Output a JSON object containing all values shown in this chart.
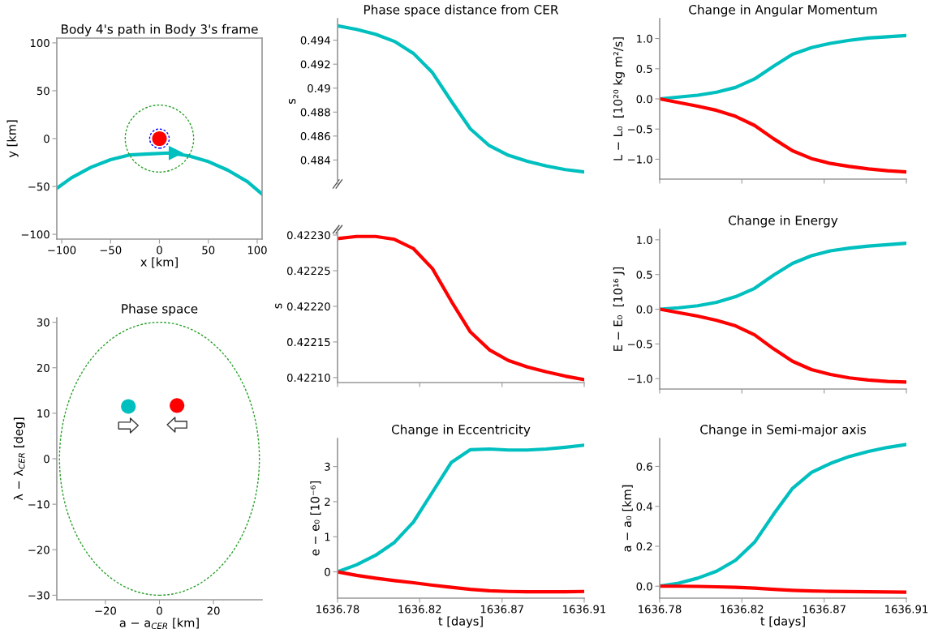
{
  "chart_data": [
    {
      "type": "line",
      "title": "Body 4's path in Body 3's frame",
      "xlabel": "x [km]",
      "ylabel": "y [km]",
      "xlim": [
        -105,
        105
      ],
      "ylim": [
        -105,
        105
      ],
      "xticks": [
        {
          "value": -100,
          "label": "−100"
        },
        {
          "value": -50,
          "label": "−50"
        },
        0,
        50,
        100
      ],
      "yticks": [
        {
          "value": -100,
          "label": "−100"
        },
        {
          "value": -50,
          "label": "−50"
        },
        0,
        50,
        100
      ],
      "series": [
        {
          "type": "line",
          "color": "#00bfbf",
          "x": [
            -105,
            -90,
            -70,
            -50,
            -30,
            -10,
            10,
            30,
            50,
            70,
            90,
            105
          ],
          "values": [
            -52,
            -41,
            -30,
            -22,
            -17,
            -16,
            -15,
            -18,
            -24,
            -33,
            -45,
            -58
          ]
        },
        {
          "type": "scatter",
          "color": "#ff0000",
          "x": [
            0
          ],
          "values": [
            0
          ],
          "marker": "circle"
        },
        {
          "type": "scatter",
          "color": "#00bfbf",
          "x": [
            17
          ],
          "values": [
            -15
          ],
          "marker": "triangle_right"
        }
      ]
    },
    {
      "type": "line",
      "title": "Phase space distance from CER",
      "ylabel": "s",
      "tick_labels": "y",
      "xlim": [
        1636.78,
        1636.91
      ],
      "ylim": [
        0.482,
        0.4958
      ],
      "yticks": [
        0.484,
        0.486,
        0.488,
        0.49,
        0.492,
        0.494
      ],
      "x": [
        1636.78,
        1636.79,
        1636.8,
        1636.81,
        1636.82,
        1636.83,
        1636.84,
        1636.85,
        1636.86,
        1636.87,
        1636.88,
        1636.89,
        1636.9,
        1636.91
      ],
      "series": [
        {
          "color": "#00bfbf",
          "values": [
            0.4952,
            0.4949,
            0.4945,
            0.4939,
            0.4929,
            0.4913,
            0.4889,
            0.4866,
            0.4852,
            0.4844,
            0.4839,
            0.4835,
            0.4832,
            0.483
          ]
        }
      ]
    },
    {
      "type": "line",
      "title": "Change in Angular Momentum",
      "ylabel": "L − L₀  [10²⁰ kg m²/s]",
      "tick_labels": "y",
      "xlim": [
        1636.78,
        1636.91
      ],
      "ylim": [
        -1.33,
        1.33
      ],
      "xticks": [
        {
          "value": 1636.78,
          "label": null
        },
        {
          "value": 1636.8233,
          "label": null
        },
        {
          "value": 1636.8667,
          "label": null
        },
        {
          "value": 1636.91,
          "label": null
        }
      ],
      "yticks": [
        {
          "value": -1.0,
          "label": "−1.0"
        },
        {
          "value": -0.5,
          "label": "−0.5"
        },
        {
          "value": 0,
          "label": "0.0"
        },
        0.5,
        {
          "value": 1,
          "label": "1.0"
        }
      ],
      "x": [
        1636.78,
        1636.79,
        1636.8,
        1636.81,
        1636.82,
        1636.83,
        1636.84,
        1636.85,
        1636.86,
        1636.87,
        1636.88,
        1636.89,
        1636.9,
        1636.91
      ],
      "series": [
        {
          "color": "#00bfbf",
          "values": [
            0,
            0.03,
            0.06,
            0.11,
            0.19,
            0.33,
            0.54,
            0.74,
            0.85,
            0.92,
            0.97,
            1.01,
            1.03,
            1.05
          ]
        },
        {
          "color": "#ff0000",
          "values": [
            0,
            -0.06,
            -0.12,
            -0.19,
            -0.29,
            -0.44,
            -0.66,
            -0.86,
            -0.99,
            -1.07,
            -1.12,
            -1.16,
            -1.19,
            -1.21
          ]
        }
      ]
    },
    {
      "type": "scatter",
      "title": "Phase space",
      "xlabel": "a − a$_{CER}$ [km]",
      "ylabel": "λ − λ$_{CER}$ [deg]",
      "xlim": [
        -38,
        38
      ],
      "ylim": [
        -31,
        31
      ],
      "xticks": [
        {
          "value": -20,
          "label": "−20"
        },
        0,
        20
      ],
      "yticks": [
        {
          "value": -30,
          "label": "−30"
        },
        {
          "value": -20,
          "label": "−20"
        },
        {
          "value": -10,
          "label": "−10"
        },
        0,
        10,
        20,
        30
      ],
      "series": [
        {
          "type": "scatter",
          "color": "#00bfbf",
          "x": [
            -11.5
          ],
          "values": [
            11.5
          ],
          "marker": "circle"
        },
        {
          "type": "scatter",
          "color": "#ff0000",
          "x": [
            6.5
          ],
          "values": [
            11.7
          ],
          "marker": "circle"
        }
      ]
    },
    {
      "type": "line",
      "ylabel": "s",
      "tick_labels": "y",
      "xlim": [
        1636.78,
        1636.91
      ],
      "ylim": [
        0.422093,
        0.422308
      ],
      "xticks": [
        {
          "value": 1636.78,
          "label": null
        },
        {
          "value": 1636.8233,
          "label": null
        },
        {
          "value": 1636.8667,
          "label": null
        },
        {
          "value": 1636.91,
          "label": null
        }
      ],
      "yticks": [
        {
          "value": 0.4221,
          "label": "0.42210"
        },
        {
          "value": 0.42215,
          "label": "0.42215"
        },
        {
          "value": 0.4222,
          "label": "0.42220"
        },
        {
          "value": 0.42225,
          "label": "0.42225"
        },
        {
          "value": 0.4223,
          "label": "0.42230"
        }
      ],
      "x": [
        1636.78,
        1636.79,
        1636.8,
        1636.81,
        1636.82,
        1636.83,
        1636.84,
        1636.85,
        1636.86,
        1636.87,
        1636.88,
        1636.89,
        1636.9,
        1636.91
      ],
      "series": [
        {
          "color": "#ff0000",
          "values": [
            0.422295,
            0.422298,
            0.422298,
            0.422294,
            0.422281,
            0.422253,
            0.422207,
            0.422164,
            0.422139,
            0.422124,
            0.422115,
            0.422108,
            0.422102,
            0.422097
          ]
        }
      ]
    },
    {
      "type": "line",
      "title": "Change in Energy",
      "ylabel": "E − E₀  [10¹⁶ J]",
      "tick_labels": "y",
      "xlim": [
        1636.78,
        1636.91
      ],
      "ylim": [
        -1.15,
        1.15
      ],
      "xticks": [
        {
          "value": 1636.78,
          "label": null
        },
        {
          "value": 1636.8233,
          "label": null
        },
        {
          "value": 1636.8667,
          "label": null
        },
        {
          "value": 1636.91,
          "label": null
        }
      ],
      "yticks": [
        {
          "value": -1.0,
          "label": "−1.0"
        },
        {
          "value": -0.5,
          "label": "−0.5"
        },
        {
          "value": 0,
          "label": "0.0"
        },
        0.5,
        {
          "value": 1,
          "label": "1.0"
        }
      ],
      "x": [
        1636.78,
        1636.79,
        1636.8,
        1636.81,
        1636.82,
        1636.83,
        1636.84,
        1636.85,
        1636.86,
        1636.87,
        1636.88,
        1636.89,
        1636.9,
        1636.91
      ],
      "series": [
        {
          "color": "#00bfbf",
          "values": [
            0,
            0.02,
            0.05,
            0.1,
            0.18,
            0.3,
            0.49,
            0.66,
            0.77,
            0.84,
            0.88,
            0.91,
            0.93,
            0.95
          ]
        },
        {
          "color": "#ff0000",
          "values": [
            0,
            -0.05,
            -0.1,
            -0.16,
            -0.24,
            -0.37,
            -0.57,
            -0.75,
            -0.87,
            -0.94,
            -0.99,
            -1.02,
            -1.04,
            -1.05
          ]
        }
      ]
    },
    {
      "type": "line",
      "title": "Change in Eccentricity",
      "xlabel": "t [days]",
      "ylabel": "e − e₀ [10⁻⁶]",
      "xlim": [
        1636.78,
        1636.91
      ],
      "ylim": [
        -0.75,
        3.8
      ],
      "xticks": [
        {
          "value": 1636.78,
          "label": "1636.78"
        },
        {
          "value": 1636.8233,
          "label": "1636.82"
        },
        {
          "value": 1636.8667,
          "label": "1636.87"
        },
        {
          "value": 1636.91,
          "label": "1636.91"
        }
      ],
      "yticks": [
        0,
        1,
        2,
        3
      ],
      "x": [
        1636.78,
        1636.79,
        1636.8,
        1636.81,
        1636.82,
        1636.83,
        1636.84,
        1636.85,
        1636.86,
        1636.87,
        1636.88,
        1636.89,
        1636.9,
        1636.91
      ],
      "series": [
        {
          "color": "#00bfbf",
          "values": [
            0,
            0.2,
            0.47,
            0.84,
            1.42,
            2.27,
            3.12,
            3.48,
            3.5,
            3.47,
            3.47,
            3.5,
            3.55,
            3.61
          ]
        },
        {
          "color": "#ff0000",
          "values": [
            0,
            -0.1,
            -0.18,
            -0.25,
            -0.31,
            -0.38,
            -0.44,
            -0.5,
            -0.54,
            -0.56,
            -0.57,
            -0.57,
            -0.57,
            -0.56
          ]
        }
      ]
    },
    {
      "type": "line",
      "title": "Change in Semi-major axis",
      "xlabel": "t [days]",
      "ylabel": "a − a₀ [km]",
      "xlim": [
        1636.78,
        1636.91
      ],
      "ylim": [
        -0.06,
        0.74
      ],
      "xticks": [
        {
          "value": 1636.78,
          "label": "1636.78"
        },
        {
          "value": 1636.8233,
          "label": "1636.82"
        },
        {
          "value": 1636.8667,
          "label": "1636.87"
        },
        {
          "value": 1636.91,
          "label": "1636.91"
        }
      ],
      "yticks": [
        {
          "value": 0,
          "label": "0.0"
        },
        0.2,
        0.4,
        0.6
      ],
      "x": [
        1636.78,
        1636.79,
        1636.8,
        1636.81,
        1636.82,
        1636.83,
        1636.84,
        1636.85,
        1636.86,
        1636.87,
        1636.88,
        1636.89,
        1636.9,
        1636.91
      ],
      "series": [
        {
          "color": "#00bfbf",
          "values": [
            0,
            0.015,
            0.04,
            0.075,
            0.13,
            0.22,
            0.36,
            0.49,
            0.57,
            0.615,
            0.65,
            0.675,
            0.695,
            0.71
          ]
        },
        {
          "color": "#ff0000",
          "values": [
            0,
            0,
            -0.001,
            -0.003,
            -0.006,
            -0.01,
            -0.016,
            -0.021,
            -0.024,
            -0.026,
            -0.027,
            -0.028,
            -0.029,
            -0.03
          ]
        }
      ]
    }
  ]
}
